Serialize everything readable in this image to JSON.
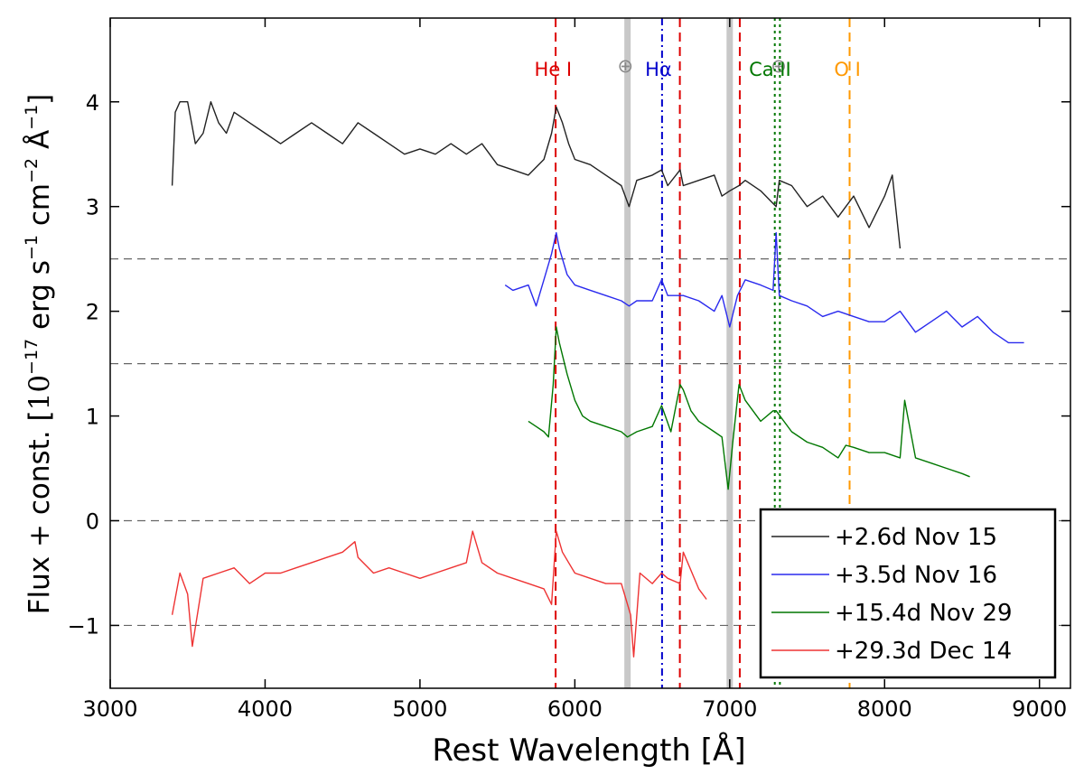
{
  "chart_data": {
    "type": "line",
    "title": "",
    "xlabel": "Rest Wavelength [Å]",
    "ylabel_main": "Flux + const. [",
    "ylabel_math": "10",
    "ylabel_exp1": "−17",
    "ylabel_units": " erg s",
    "ylabel_exp2": "−1",
    "ylabel_cm": " cm",
    "ylabel_exp3": "−2",
    "ylabel_ang": " Å",
    "ylabel_exp4": "−1",
    "ylabel_close": "]",
    "xlim": [
      3000,
      9200
    ],
    "ylim": [
      -1.6,
      4.8
    ],
    "xticks": [
      3000,
      4000,
      5000,
      6000,
      7000,
      8000,
      9000
    ],
    "xtick_labels": [
      "3000",
      "4000",
      "5000",
      "6000",
      "7000",
      "8000",
      "9000"
    ],
    "yticks": [
      -1,
      0,
      1,
      2,
      3,
      4
    ],
    "ytick_labels": [
      "−1",
      "0",
      "1",
      "2",
      "3",
      "4"
    ],
    "grid": false,
    "reference_hlines": [
      -1,
      0,
      1.5,
      2.5
    ],
    "telluric_bands": [
      6340,
      7000
    ],
    "telluric_symbol": "⊕",
    "telluric_symbol_x": [
      6280,
      7270
    ],
    "line_markers": [
      {
        "label": "He I",
        "color": "#dd0000",
        "x": [
          5876,
          6678,
          7065
        ],
        "style": "dashed",
        "label_x": 5860
      },
      {
        "label": "Hα",
        "color": "#0000cc",
        "x": [
          6563
        ],
        "style": "dashdot",
        "label_x": 6540
      },
      {
        "label": "Ca II",
        "color": "#007700",
        "x": [
          7291,
          7324
        ],
        "style": "dotted",
        "label_x": 7260
      },
      {
        "label": "O I",
        "color": "#ff9900",
        "x": [
          7774
        ],
        "style": "dashed",
        "label_x": 7760
      }
    ],
    "legend_position": "lower-right",
    "series": [
      {
        "name": "+2.6d  Nov 15",
        "color": "#222222",
        "x": [
          3400,
          3420,
          3450,
          3500,
          3550,
          3600,
          3650,
          3700,
          3750,
          3800,
          3900,
          4000,
          4100,
          4200,
          4300,
          4400,
          4500,
          4600,
          4700,
          4800,
          4900,
          5000,
          5100,
          5200,
          5300,
          5400,
          5500,
          5600,
          5700,
          5800,
          5850,
          5880,
          5920,
          5960,
          6000,
          6100,
          6200,
          6300,
          6350,
          6400,
          6500,
          6560,
          6600,
          6680,
          6700,
          6800,
          6900,
          6950,
          7000,
          7060,
          7100,
          7200,
          7300,
          7320,
          7400,
          7500,
          7600,
          7700,
          7800,
          7900,
          8000,
          8050,
          8100
        ],
        "values": [
          3.2,
          3.9,
          4.0,
          4.0,
          3.6,
          3.7,
          4.0,
          3.8,
          3.7,
          3.9,
          3.8,
          3.7,
          3.6,
          3.7,
          3.8,
          3.7,
          3.6,
          3.8,
          3.7,
          3.6,
          3.5,
          3.55,
          3.5,
          3.6,
          3.5,
          3.6,
          3.4,
          3.35,
          3.3,
          3.45,
          3.7,
          3.95,
          3.8,
          3.6,
          3.45,
          3.4,
          3.3,
          3.2,
          3.0,
          3.25,
          3.3,
          3.35,
          3.2,
          3.35,
          3.2,
          3.25,
          3.3,
          3.1,
          3.15,
          3.2,
          3.25,
          3.15,
          3.0,
          3.25,
          3.2,
          3.0,
          3.1,
          2.9,
          3.1,
          2.8,
          3.1,
          3.3,
          2.6
        ]
      },
      {
        "name": "+3.5d  Nov 16",
        "color": "#2a2aee",
        "x": [
          5550,
          5600,
          5700,
          5750,
          5800,
          5850,
          5880,
          5900,
          5950,
          6000,
          6100,
          6200,
          6300,
          6350,
          6400,
          6500,
          6560,
          6600,
          6700,
          6800,
          6900,
          6950,
          7000,
          7050,
          7100,
          7200,
          7280,
          7300,
          7320,
          7400,
          7500,
          7600,
          7700,
          7800,
          7900,
          8000,
          8100,
          8200,
          8300,
          8400,
          8500,
          8600,
          8700,
          8800,
          8900
        ],
        "values": [
          2.25,
          2.2,
          2.25,
          2.05,
          2.3,
          2.55,
          2.75,
          2.6,
          2.35,
          2.25,
          2.2,
          2.15,
          2.1,
          2.05,
          2.1,
          2.1,
          2.3,
          2.15,
          2.15,
          2.1,
          2.0,
          2.15,
          1.85,
          2.15,
          2.3,
          2.25,
          2.2,
          2.75,
          2.15,
          2.1,
          2.05,
          1.95,
          2.0,
          1.95,
          1.9,
          1.9,
          2.0,
          1.8,
          1.9,
          2.0,
          1.85,
          1.95,
          1.8,
          1.7,
          1.7
        ]
      },
      {
        "name": "+15.4d Nov 29",
        "color": "#007700",
        "x": [
          5700,
          5750,
          5800,
          5830,
          5860,
          5880,
          5900,
          5950,
          6000,
          6050,
          6100,
          6200,
          6300,
          6340,
          6400,
          6500,
          6560,
          6620,
          6680,
          6700,
          6750,
          6800,
          6900,
          6950,
          6990,
          7020,
          7060,
          7100,
          7200,
          7280,
          7300,
          7400,
          7500,
          7600,
          7700,
          7750,
          7800,
          7900,
          8000,
          8100,
          8130,
          8200,
          8300,
          8400,
          8500,
          8550
        ],
        "values": [
          0.95,
          0.9,
          0.85,
          0.8,
          1.3,
          1.85,
          1.7,
          1.4,
          1.15,
          1.0,
          0.95,
          0.9,
          0.85,
          0.8,
          0.85,
          0.9,
          1.1,
          0.85,
          1.3,
          1.25,
          1.05,
          0.95,
          0.85,
          0.8,
          0.3,
          0.75,
          1.3,
          1.15,
          0.95,
          1.05,
          1.05,
          0.85,
          0.75,
          0.7,
          0.6,
          0.72,
          0.7,
          0.65,
          0.65,
          0.6,
          1.15,
          0.6,
          0.55,
          0.5,
          0.45,
          0.42
        ]
      },
      {
        "name": "+29.3d Dec 14",
        "color": "#ee3333",
        "x": [
          3400,
          3450,
          3500,
          3530,
          3600,
          3700,
          3800,
          3900,
          4000,
          4100,
          4200,
          4300,
          4400,
          4500,
          4580,
          4600,
          4700,
          4800,
          4900,
          5000,
          5100,
          5200,
          5300,
          5340,
          5400,
          5500,
          5600,
          5700,
          5800,
          5850,
          5880,
          5920,
          6000,
          6100,
          6200,
          6300,
          6360,
          6380,
          6420,
          6500,
          6560,
          6600,
          6680,
          6700,
          6800,
          6850
        ],
        "values": [
          -0.9,
          -0.5,
          -0.7,
          -1.2,
          -0.55,
          -0.5,
          -0.45,
          -0.6,
          -0.5,
          -0.5,
          -0.45,
          -0.4,
          -0.35,
          -0.3,
          -0.2,
          -0.35,
          -0.5,
          -0.45,
          -0.5,
          -0.55,
          -0.5,
          -0.45,
          -0.4,
          -0.1,
          -0.4,
          -0.5,
          -0.55,
          -0.6,
          -0.65,
          -0.8,
          -0.1,
          -0.3,
          -0.5,
          -0.55,
          -0.6,
          -0.6,
          -0.9,
          -1.3,
          -0.5,
          -0.6,
          -0.5,
          -0.55,
          -0.6,
          -0.3,
          -0.65,
          -0.75
        ]
      }
    ]
  }
}
